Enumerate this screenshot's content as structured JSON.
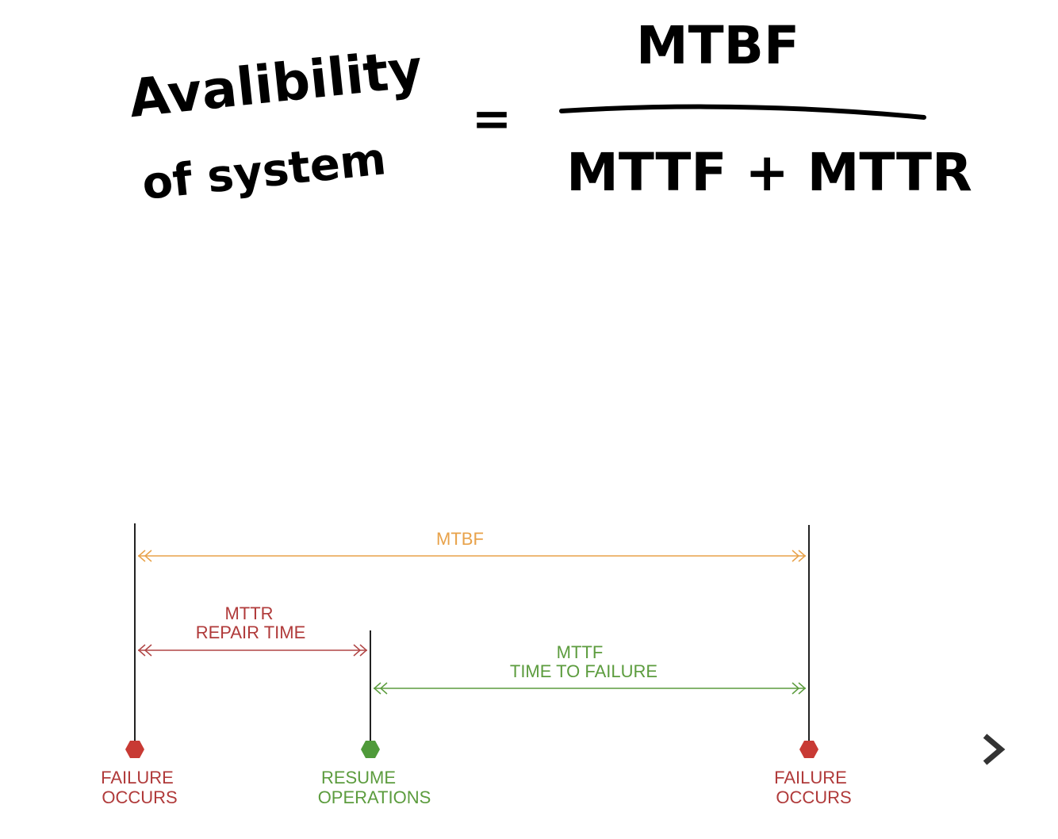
{
  "formula": {
    "lhs": [
      "Avalibility",
      "of system"
    ],
    "equals": "=",
    "numerator": "MTBF",
    "denominator": "MTTF + MTTR"
  },
  "timeline": {
    "spans": [
      {
        "label": [
          "MTBF"
        ]
      },
      {
        "label": [
          "MTTR",
          "REPAIR TIME"
        ]
      },
      {
        "label": [
          "MTTF",
          "TIME TO FAILURE"
        ]
      }
    ],
    "events": [
      {
        "label": [
          "FAILURE",
          "OCCURS"
        ]
      },
      {
        "label": [
          "RESUME",
          "OPERATIONS"
        ]
      },
      {
        "label": [
          "FAILURE",
          "OCCURS"
        ]
      }
    ]
  }
}
